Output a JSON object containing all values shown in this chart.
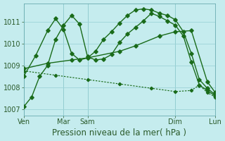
{
  "background_color": "#c5ecee",
  "grid_color": "#9dd4d8",
  "line_color": "#1a6b1a",
  "title": "Pression niveau de la mer( hPa )",
  "ylim": [
    1006.7,
    1011.85
  ],
  "yticks": [
    1007,
    1008,
    1009,
    1010,
    1011
  ],
  "xtick_positions": [
    0,
    5,
    8,
    12,
    19,
    24
  ],
  "xtick_labels": [
    "Ven",
    "Mar",
    "Sam",
    "Dim",
    "",
    "Lun"
  ],
  "vlines": [
    0,
    5,
    8,
    12,
    19,
    24
  ],
  "line1_x": [
    0,
    1,
    2,
    3,
    4,
    5,
    6,
    7,
    8,
    9,
    10,
    11,
    12,
    13,
    14,
    15,
    16,
    17,
    18,
    19,
    20,
    21,
    22,
    23,
    24
  ],
  "line1_y": [
    1007.1,
    1007.55,
    1008.5,
    1009.0,
    1010.2,
    1010.85,
    1011.3,
    1010.9,
    1009.4,
    1009.25,
    1009.3,
    1009.5,
    1010.05,
    1010.45,
    1010.75,
    1011.05,
    1011.4,
    1011.25,
    1011.05,
    1010.85,
    1010.35,
    1009.15,
    1008.1,
    1007.85,
    1007.6
  ],
  "line2_x": [
    0,
    1.5,
    3,
    4,
    5,
    6,
    7,
    8,
    9,
    10,
    11,
    12,
    13,
    14,
    15,
    16,
    17,
    18,
    19,
    20,
    21,
    22,
    23,
    24
  ],
  "line2_y": [
    1008.5,
    1009.45,
    1010.6,
    1011.15,
    1010.65,
    1009.55,
    1009.25,
    1009.35,
    1009.65,
    1010.2,
    1010.55,
    1010.95,
    1011.3,
    1011.55,
    1011.6,
    1011.55,
    1011.4,
    1011.3,
    1011.1,
    1010.55,
    1009.55,
    1008.35,
    1007.95,
    1007.65
  ],
  "line3_x": [
    0,
    3,
    6,
    8,
    12,
    14,
    17,
    19,
    21,
    23,
    24
  ],
  "line3_y": [
    1008.85,
    1009.1,
    1009.25,
    1009.35,
    1009.65,
    1009.9,
    1010.35,
    1010.55,
    1010.6,
    1008.25,
    1007.75
  ],
  "line4_x": [
    0,
    4,
    8,
    12,
    16,
    19,
    21,
    22,
    23,
    24
  ],
  "line4_y": [
    1008.75,
    1008.55,
    1008.35,
    1008.15,
    1007.95,
    1007.8,
    1007.85,
    1008.1,
    1007.75,
    1007.55
  ],
  "marker": "D",
  "markersize": 2.8,
  "linewidth": 1.0,
  "title_fontsize": 8.5,
  "tick_fontsize": 7
}
